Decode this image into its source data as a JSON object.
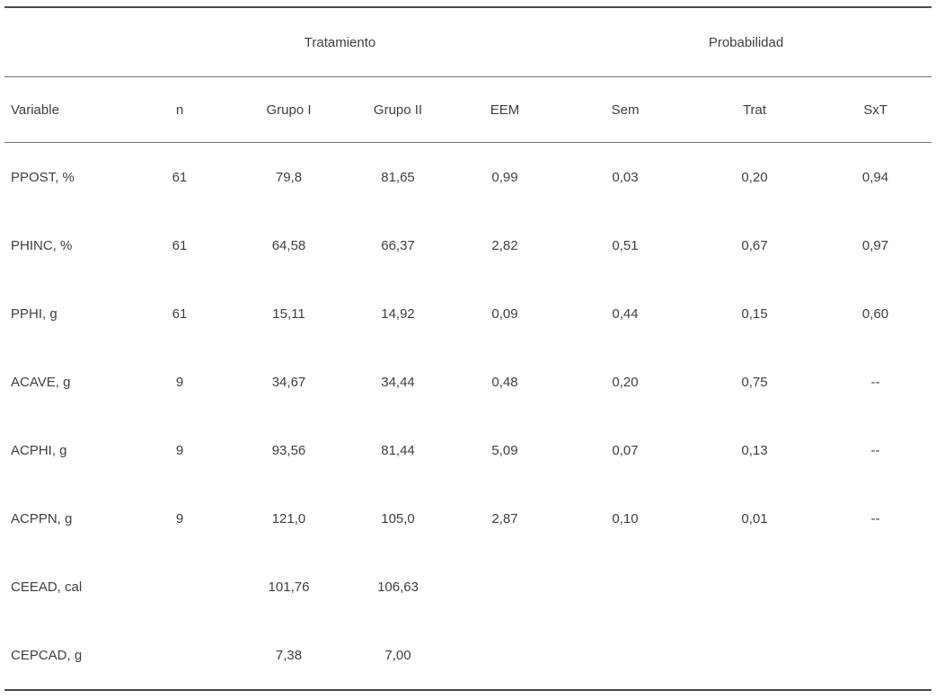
{
  "table": {
    "group_headers": {
      "tratamiento": "Tratamiento",
      "probabilidad": "Probabilidad"
    },
    "columns": [
      "Variable",
      "n",
      "Grupo I",
      "Grupo II",
      "EEM",
      "Sem",
      "Trat",
      "SxT"
    ],
    "rows": [
      [
        "PPOST, %",
        "61",
        "79,8",
        "81,65",
        "0,99",
        "0,03",
        "0,20",
        "0,94"
      ],
      [
        "PHINC, %",
        "61",
        "64,58",
        "66,37",
        "2,82",
        "0,51",
        "0,67",
        "0,97"
      ],
      [
        "PPHI, g",
        "61",
        "15,11",
        "14,92",
        "0,09",
        "0,44",
        "0,15",
        "0,60"
      ],
      [
        "ACAVE, g",
        "9",
        "34,67",
        "34,44",
        "0,48",
        "0,20",
        "0,75",
        "--"
      ],
      [
        "ACPHI, g",
        "9",
        "93,56",
        "81,44",
        "5,09",
        "0,07",
        "0,13",
        "--"
      ],
      [
        "ACPPN, g",
        "9",
        "121,0",
        "105,0",
        "2,87",
        "0,10",
        "0,01",
        "--"
      ],
      [
        "CEEAD, cal",
        "",
        "101,76",
        "106,63",
        "",
        "",
        "",
        ""
      ],
      [
        "CEPCAD, g",
        "",
        "7,38",
        "7,00",
        "",
        "",
        "",
        ""
      ]
    ],
    "text_color": "#3f3f3f",
    "rule_color": "#4a4a4a"
  }
}
